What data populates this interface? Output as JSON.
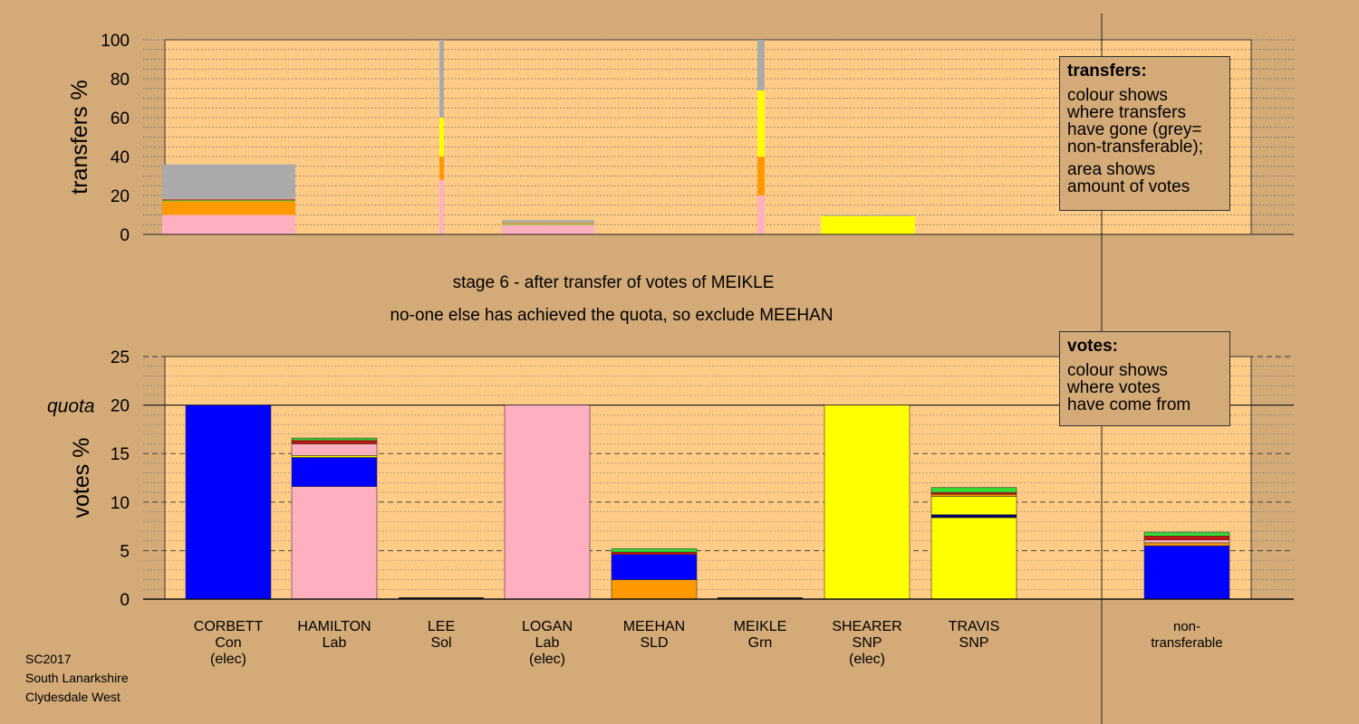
{
  "title_lines": [
    "stage 6 - after transfer of votes of MEIKLE",
    "no-one else has achieved the quota, so exclude MEEHAN"
  ],
  "footer_lines": [
    "SC2017",
    "South Lanarkshire",
    "Clydesdale West"
  ],
  "legend_transfers": {
    "title": "transfers:",
    "paragraphs": [
      [
        "colour shows",
        "where transfers",
        "have gone (grey=",
        "non-transferable);"
      ],
      [
        "area shows",
        "amount of votes"
      ]
    ]
  },
  "legend_votes": {
    "title": "votes:",
    "paragraphs": [
      [
        "colour shows",
        "where votes",
        "have come from"
      ]
    ]
  },
  "colors": {
    "background": "#d4aa78",
    "plot_background": "#ffcc88",
    "Con": "#0000ff",
    "Lab": "#ffb0c0",
    "SNP": "#ffff00",
    "SLD": "#ff9900",
    "Grn": "#33dd33",
    "Sol": "#cc1111",
    "nontransferable": "#aaaaaa",
    "dark_navy": "#000066"
  },
  "chart_data": [
    {
      "type": "bar",
      "name": "transfers",
      "ylabel": "transfers %",
      "ylim": [
        0,
        100
      ],
      "yticks": [
        0,
        20,
        40,
        60,
        80,
        100
      ],
      "grid": "dotted",
      "bars": [
        {
          "candidate": "CORBETT",
          "width_share": 1.0,
          "segments": [
            {
              "party": "Lab",
              "value": 10
            },
            {
              "party": "SLD",
              "value": 7
            },
            {
              "party": "Grn",
              "value": 0.5
            },
            {
              "party": "Sol",
              "value": 0.5
            },
            {
              "party": "nontransferable",
              "value": 18
            }
          ]
        },
        {
          "candidate": "LEE",
          "width_share": 0.03,
          "segments": [
            {
              "party": "Lab",
              "value": 28
            },
            {
              "party": "SLD",
              "value": 12
            },
            {
              "party": "SNP",
              "value": 20
            },
            {
              "party": "nontransferable",
              "value": 40
            }
          ]
        },
        {
          "candidate": "LOGAN",
          "width_share": 0.7,
          "segments": [
            {
              "party": "Lab",
              "value": 5
            },
            {
              "party": "Grn",
              "value": 0.3
            },
            {
              "party": "SLD",
              "value": 0.5
            },
            {
              "party": "nontransferable",
              "value": 1.5
            }
          ]
        },
        {
          "candidate": "MEIKLE",
          "width_share": 0.05,
          "segments": [
            {
              "party": "Lab",
              "value": 20
            },
            {
              "party": "SLD",
              "value": 20
            },
            {
              "party": "SNP",
              "value": 34
            },
            {
              "party": "nontransferable",
              "value": 26
            }
          ]
        },
        {
          "candidate": "SHEARER",
          "width_share": 0.7,
          "segments": [
            {
              "party": "SNP",
              "value": 9.5
            },
            {
              "party": "nontransferable",
              "value": 0.5
            }
          ]
        }
      ]
    },
    {
      "type": "bar",
      "name": "votes",
      "ylabel": "votes %",
      "ylim": [
        0,
        25
      ],
      "yticks": [
        0,
        5,
        10,
        15,
        20,
        25
      ],
      "quota": 20,
      "quota_label": "quota",
      "grid": "dashed",
      "bars": [
        {
          "candidate": "CORBETT",
          "label": [
            "CORBETT",
            "Con",
            "(elec)"
          ],
          "segments": [
            {
              "party": "Con",
              "value": 20
            }
          ]
        },
        {
          "candidate": "HAMILTON",
          "label": [
            "HAMILTON",
            "Lab"
          ],
          "segments": [
            {
              "party": "Lab",
              "value": 11.6
            },
            {
              "party": "Con",
              "value": 3
            },
            {
              "party": "SNP",
              "value": 0.2
            },
            {
              "party": "Lab",
              "value": 1.2
            },
            {
              "party": "Sol",
              "value": 0.3
            },
            {
              "party": "SLD",
              "value": 0.1
            },
            {
              "party": "Grn",
              "value": 0.2
            }
          ]
        },
        {
          "candidate": "LEE",
          "label": [
            "LEE",
            "Sol"
          ],
          "segments": []
        },
        {
          "candidate": "LOGAN",
          "label": [
            "LOGAN",
            "Lab",
            "(elec)"
          ],
          "segments": [
            {
              "party": "Lab",
              "value": 20
            }
          ]
        },
        {
          "candidate": "MEEHAN",
          "label": [
            "MEEHAN",
            "SLD"
          ],
          "segments": [
            {
              "party": "SLD",
              "value": 2
            },
            {
              "party": "Con",
              "value": 2.6
            },
            {
              "party": "Sol",
              "value": 0.25
            },
            {
              "party": "Grn",
              "value": 0.35
            }
          ]
        },
        {
          "candidate": "MEIKLE",
          "label": [
            "MEIKLE",
            "Grn"
          ],
          "segments": []
        },
        {
          "candidate": "SHEARER",
          "label": [
            "SHEARER",
            "SNP",
            "(elec)"
          ],
          "segments": [
            {
              "party": "SNP",
              "value": 20
            }
          ]
        },
        {
          "candidate": "TRAVIS",
          "label": [
            "TRAVIS",
            "SNP"
          ],
          "segments": [
            {
              "party": "SNP",
              "value": 8.4
            },
            {
              "party": "dark_navy",
              "value": 0.3
            },
            {
              "party": "SNP",
              "value": 1.9
            },
            {
              "party": "SLD",
              "value": 0.2
            },
            {
              "party": "Sol",
              "value": 0.2
            },
            {
              "party": "Grn",
              "value": 0.5
            }
          ]
        },
        {
          "candidate": "non-transferable",
          "label": [
            "non-",
            "transferable"
          ],
          "segments": [
            {
              "party": "Con",
              "value": 5.5
            },
            {
              "party": "SLD",
              "value": 0.3
            },
            {
              "party": "Lab",
              "value": 0.3
            },
            {
              "party": "Sol",
              "value": 0.4
            },
            {
              "party": "Grn",
              "value": 0.4
            }
          ]
        }
      ]
    }
  ]
}
